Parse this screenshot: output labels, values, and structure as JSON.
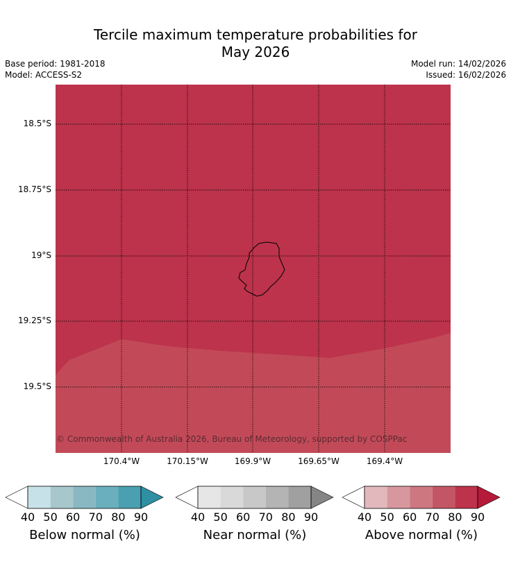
{
  "title_line1": "Tercile maximum temperature probabilities for",
  "title_line2": "May 2026",
  "base_period": "Base period: 1981-2018",
  "model": "Model: ACCESS-S2",
  "model_run": "Model run: 14/02/2026",
  "issued": "Issued: 16/02/2026",
  "map": {
    "lat_labels": [
      "18.5°S",
      "18.75°S",
      "19°S",
      "19.25°S",
      "19.5°S"
    ],
    "lon_labels": [
      "170.4°W",
      "170.15°W",
      "169.9°W",
      "169.65°W",
      "169.4°W"
    ],
    "copyright": "© Commonwealth of Australia 2026, Bureau of Meteorology, supported by COSPPac",
    "colors": {
      "high": "#bc334b",
      "lower": "#c24a58",
      "grid": "#000000"
    }
  },
  "colorbars": [
    {
      "label": "Below normal (%)",
      "ticks": [
        "40",
        "50",
        "60",
        "70",
        "80",
        "90"
      ],
      "colors": [
        "#ffffff",
        "#c6e1e7",
        "#a7c7cc",
        "#89b8c3",
        "#6aafbd",
        "#4a9fb0",
        "#2f8fa3"
      ]
    },
    {
      "label": "Near normal (%)",
      "ticks": [
        "40",
        "50",
        "60",
        "70",
        "80",
        "90"
      ],
      "colors": [
        "#ffffff",
        "#e6e6e6",
        "#d9d9d9",
        "#c8c8c8",
        "#b4b4b4",
        "#a0a0a0",
        "#858585"
      ]
    },
    {
      "label": "Above normal (%)",
      "ticks": [
        "40",
        "50",
        "60",
        "70",
        "80",
        "90"
      ],
      "colors": [
        "#ffffff",
        "#e2b8bd",
        "#d6989e",
        "#cd7781",
        "#c25665",
        "#bc334b",
        "#b51a3a"
      ]
    }
  ]
}
